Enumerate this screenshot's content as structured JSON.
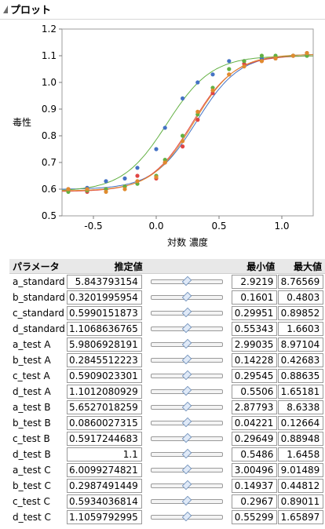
{
  "header": {
    "title": "プロット"
  },
  "chart_data": {
    "type": "scatter",
    "xlabel": "対数 濃度",
    "ylabel": "毒性",
    "xlim": [
      -0.75,
      1.25
    ],
    "ylim": [
      0.5,
      1.2
    ],
    "xticks": [
      "-0.5",
      "0.0",
      "0.5",
      "1.0"
    ],
    "xtick_values": [
      -0.5,
      0.0,
      0.5,
      1.0
    ],
    "yticks": [
      "0.5",
      "0.6",
      "0.7",
      "0.8",
      "0.9",
      "1.0",
      "1.1",
      "1.2"
    ],
    "ytick_values": [
      0.5,
      0.6,
      0.7,
      0.8,
      0.9,
      1.0,
      1.1,
      1.2
    ],
    "grid": false,
    "series": [
      {
        "color": "#4472c4",
        "x": [
          -0.7,
          -0.55,
          -0.4,
          -0.25,
          -0.15,
          0.0,
          0.07,
          0.21,
          0.33,
          0.45,
          0.58,
          0.7,
          0.84,
          0.95,
          1.09,
          1.2
        ],
        "y": [
          0.6,
          0.605,
          0.63,
          0.64,
          0.68,
          0.75,
          0.83,
          0.94,
          1.0,
          1.03,
          1.08,
          1.08,
          1.09,
          1.09,
          1.1,
          1.1
        ],
        "curve": {
          "a": 5.843793154,
          "b": 0.3201995954,
          "c": 0.5990151873,
          "d": 1.1068636765
        }
      },
      {
        "color": "#e04545",
        "x": [
          -0.7,
          -0.55,
          -0.4,
          -0.25,
          -0.15,
          0.0,
          0.07,
          0.21,
          0.33,
          0.45,
          0.58,
          0.7,
          0.84,
          0.95,
          1.09,
          1.2
        ],
        "y": [
          0.6,
          0.59,
          0.6,
          0.61,
          0.65,
          0.64,
          0.7,
          0.76,
          0.86,
          0.96,
          1.03,
          1.07,
          1.08,
          1.09,
          1.1,
          1.11
        ],
        "curve": {
          "a": 5.9806928191,
          "b": 0.2845512223,
          "c": 0.5909023301,
          "d": 1.1012080929
        }
      },
      {
        "color": "#62b042",
        "x": [
          -0.7,
          -0.55,
          -0.4,
          -0.25,
          -0.15,
          0.0,
          0.07,
          0.21,
          0.33,
          0.45,
          0.58,
          0.7,
          0.84,
          0.95,
          1.09,
          1.2
        ],
        "y": [
          0.59,
          0.595,
          0.6,
          0.61,
          0.62,
          0.65,
          0.71,
          0.8,
          0.88,
          0.98,
          1.05,
          1.08,
          1.1,
          1.1,
          1.1,
          1.1
        ],
        "curve": {
          "a": 5.6527018259,
          "b": 0.0860027315,
          "c": 0.5917244683,
          "d": 1.1
        }
      },
      {
        "color": "#e08b2e",
        "x": [
          -0.7,
          -0.55,
          -0.4,
          -0.25,
          -0.15,
          0.0,
          0.07,
          0.21,
          0.33,
          0.45,
          0.58,
          0.7,
          0.84,
          0.95,
          1.09,
          1.2
        ],
        "y": [
          0.6,
          0.6,
          0.59,
          0.6,
          0.63,
          0.645,
          0.7,
          0.78,
          0.89,
          0.97,
          1.03,
          1.06,
          1.08,
          1.09,
          1.1,
          1.11
        ],
        "curve": {
          "a": 6.0099274821,
          "b": 0.2987491449,
          "c": 0.5934036814,
          "d": 1.1059792995
        }
      }
    ]
  },
  "table": {
    "headers": {
      "name": "パラメータ",
      "estimate": "推定値",
      "min": "最小値",
      "max": "最大値"
    },
    "rows": [
      {
        "name": "a_standard",
        "estimate": "5.843793154",
        "min": "2.9219",
        "max": "8.76569",
        "pos": 0.5
      },
      {
        "name": "b_standard",
        "estimate": "0.3201995954",
        "min": "0.1601",
        "max": "0.4803",
        "pos": 0.5
      },
      {
        "name": "c_standard",
        "estimate": "0.5990151873",
        "min": "0.29951",
        "max": "0.89852",
        "pos": 0.5
      },
      {
        "name": "d_standard",
        "estimate": "1.1068636765",
        "min": "0.55343",
        "max": "1.6603",
        "pos": 0.5
      },
      {
        "name": "a_test A",
        "estimate": "5.9806928191",
        "min": "2.99035",
        "max": "8.97104",
        "pos": 0.5
      },
      {
        "name": "b_test A",
        "estimate": "0.2845512223",
        "min": "0.14228",
        "max": "0.42683",
        "pos": 0.5
      },
      {
        "name": "c_test A",
        "estimate": "0.5909023301",
        "min": "0.29545",
        "max": "0.88635",
        "pos": 0.5
      },
      {
        "name": "d_test A",
        "estimate": "1.1012080929",
        "min": "0.5506",
        "max": "1.65181",
        "pos": 0.5
      },
      {
        "name": "a_test B",
        "estimate": "5.6527018259",
        "min": "2.87793",
        "max": "8.6338",
        "pos": 0.5
      },
      {
        "name": "b_test B",
        "estimate": "0.0860027315",
        "min": "0.04221",
        "max": "0.12664",
        "pos": 0.5
      },
      {
        "name": "c_test B",
        "estimate": "0.5917244683",
        "min": "0.29649",
        "max": "0.88948",
        "pos": 0.5
      },
      {
        "name": "d_test B",
        "estimate": "1.1",
        "min": "0.5486",
        "max": "1.6458",
        "pos": 0.5
      },
      {
        "name": "a_test C",
        "estimate": "6.0099274821",
        "min": "3.00496",
        "max": "9.01489",
        "pos": 0.5
      },
      {
        "name": "b_test C",
        "estimate": "0.2987491449",
        "min": "0.14937",
        "max": "0.44812",
        "pos": 0.5
      },
      {
        "name": "c_test C",
        "estimate": "0.5934036814",
        "min": "0.2967",
        "max": "0.89011",
        "pos": 0.5
      },
      {
        "name": "d_test C",
        "estimate": "1.1059792995",
        "min": "0.55299",
        "max": "1.65897",
        "pos": 0.5
      }
    ]
  }
}
